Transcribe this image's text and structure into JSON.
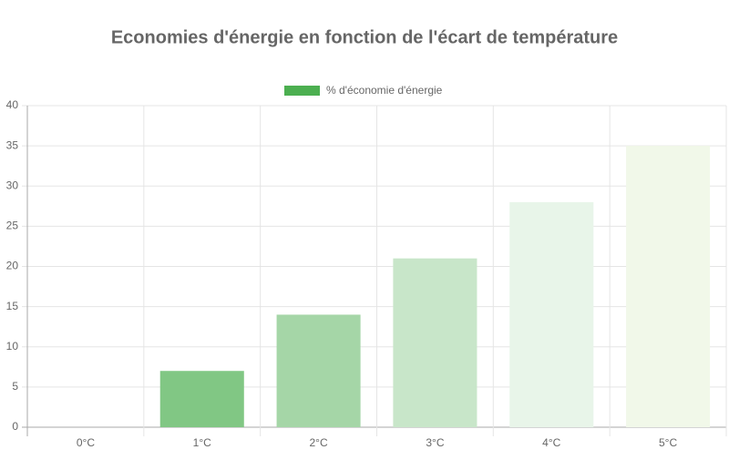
{
  "chart_data": {
    "type": "bar",
    "title": "Economies d'énergie en fonction de l'écart de température",
    "categories": [
      "0°C",
      "1°C",
      "2°C",
      "3°C",
      "4°C",
      "5°C"
    ],
    "series": [
      {
        "name": "% d'économie d'énergie",
        "colors": [
          "#4caf50",
          "#81c784",
          "#a5d6a7",
          "#c8e6c9",
          "#e8f5e9",
          "#f1f8e9"
        ],
        "values": [
          0,
          7,
          14,
          21,
          28,
          35
        ]
      }
    ],
    "ylim": [
      0,
      40
    ],
    "yticks": [
      0,
      5,
      10,
      15,
      20,
      25,
      30,
      35,
      40
    ],
    "grid": true,
    "legend": "top"
  }
}
